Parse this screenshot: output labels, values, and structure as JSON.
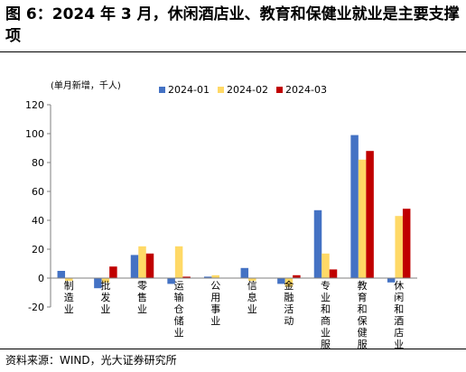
{
  "title": "图 6：2024 年 3 月，休闲酒店业、教育和保健业就业是主要支撑项",
  "source": "资料来源：WIND，光大证券研究所",
  "colors": {
    "s1": "#4472C4",
    "s2": "#FFD966",
    "s3": "#C00000",
    "axis": "#7f7f7f"
  },
  "chart_data": {
    "type": "bar",
    "unit_label": "(单月新增，千人)",
    "categories": [
      "制造业",
      "批发业",
      "零售业",
      "运输仓储业",
      "公用事业",
      "信息业",
      "金融活动",
      "专业和商业服务",
      "教育和保健服务",
      "休闲和酒店业"
    ],
    "series": [
      {
        "name": "2024-01",
        "values": [
          5,
          -7,
          16,
          -4,
          1,
          7,
          -4,
          47,
          99,
          -3
        ]
      },
      {
        "name": "2024-02",
        "values": [
          -2,
          -3,
          22,
          22,
          2,
          -2,
          -6,
          17,
          82,
          43
        ]
      },
      {
        "name": "2024-03",
        "values": [
          0,
          8,
          17,
          1,
          0,
          0,
          2,
          6,
          88,
          48
        ]
      }
    ],
    "ylim": [
      -20,
      120
    ],
    "yticks": [
      -20,
      0,
      20,
      40,
      60,
      80,
      100,
      120
    ],
    "legend_position": "top-center",
    "grid": false
  }
}
